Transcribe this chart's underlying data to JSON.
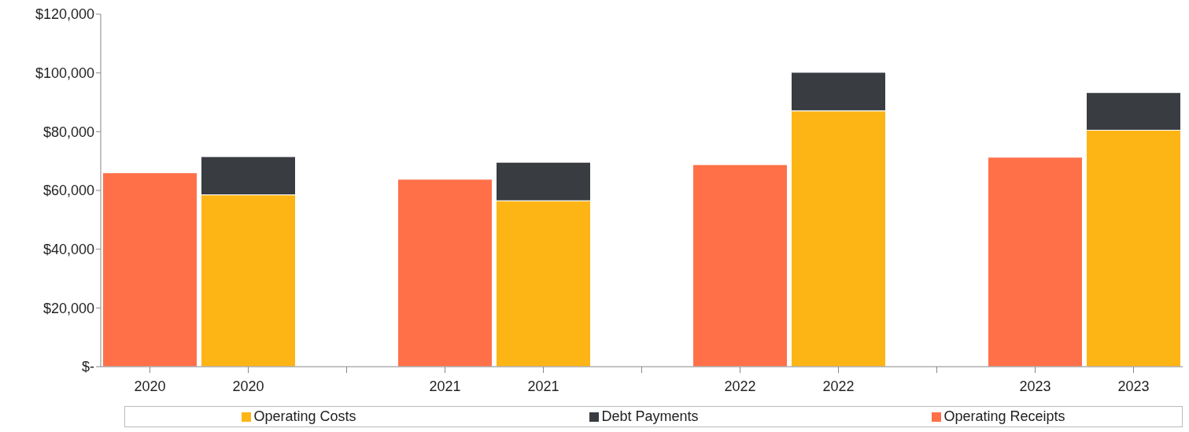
{
  "chart_data": {
    "type": "bar",
    "stacked": true,
    "categories": [
      "2020",
      "2020",
      null,
      "2021",
      "2021",
      null,
      "2022",
      "2022",
      null,
      "2023",
      "2023"
    ],
    "series": [
      {
        "name": "Operating Costs",
        "color": "#fdb515",
        "values": [
          null,
          58500,
          null,
          null,
          56500,
          null,
          null,
          87100,
          null,
          null,
          80500
        ]
      },
      {
        "name": "Debt Payments",
        "color": "#393d41",
        "values": [
          null,
          13000,
          null,
          null,
          13100,
          null,
          null,
          13100,
          null,
          null,
          12800
        ]
      },
      {
        "name": "Operating Receipts",
        "color": "#ff7049",
        "values": [
          66000,
          null,
          null,
          63800,
          null,
          null,
          68800,
          null,
          null,
          71300,
          null
        ]
      }
    ],
    "ylim": [
      0,
      120000
    ],
    "yticks": [
      {
        "value": 0,
        "label": "$-"
      },
      {
        "value": 20000,
        "label": "$20,000"
      },
      {
        "value": 40000,
        "label": "$40,000"
      },
      {
        "value": 60000,
        "label": "$60,000"
      },
      {
        "value": 80000,
        "label": "$80,000"
      },
      {
        "value": 100000,
        "label": "$100,000"
      },
      {
        "value": 120000,
        "label": "$120,000"
      }
    ],
    "grid": false,
    "legend": "bottom"
  }
}
